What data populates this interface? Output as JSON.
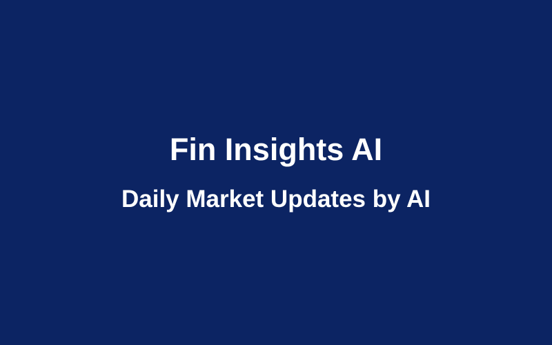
{
  "banner": {
    "title": "Fin Insights AI",
    "subtitle": "Daily Market Updates by AI",
    "background_color": "#0c2463",
    "text_color": "#ffffff"
  }
}
